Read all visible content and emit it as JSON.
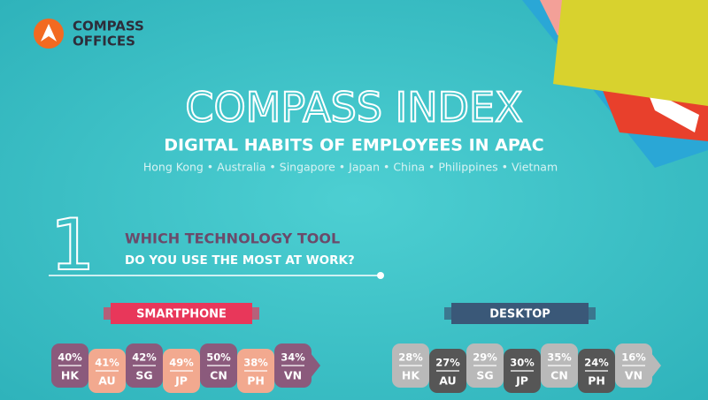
{
  "logo": {
    "line1": "COMPASS",
    "line2": "OFFICES"
  },
  "title": "COMPASS INDEX",
  "subtitle": "DIGITAL HABITS OF EMPLOYEES IN APAC",
  "countries": "Hong Kong • Australia • Singapore • Japan • China • Philippines • Vietnam",
  "question": {
    "number": "1",
    "line1": "WHICH TECHNOLOGY TOOL",
    "line2": "DO YOU USE THE MOST AT WORK?"
  },
  "groups": [
    {
      "name": "SMARTPHONE",
      "items": [
        {
          "value": "40%",
          "label": "HK"
        },
        {
          "value": "41%",
          "label": "AU"
        },
        {
          "value": "42%",
          "label": "SG"
        },
        {
          "value": "49%",
          "label": "JP"
        },
        {
          "value": "50%",
          "label": "CN"
        },
        {
          "value": "38%",
          "label": "PH"
        },
        {
          "value": "34%",
          "label": "VN"
        }
      ]
    },
    {
      "name": "DESKTOP",
      "items": [
        {
          "value": "28%",
          "label": "HK"
        },
        {
          "value": "27%",
          "label": "AU"
        },
        {
          "value": "29%",
          "label": "SG"
        },
        {
          "value": "30%",
          "label": "JP"
        },
        {
          "value": "35%",
          "label": "CN"
        },
        {
          "value": "24%",
          "label": "PH"
        },
        {
          "value": "16%",
          "label": "VN"
        }
      ]
    }
  ]
}
